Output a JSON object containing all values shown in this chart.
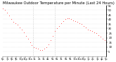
{
  "title": "Milwaukee Outdoor Temperature per Minute (Last 24 Hours)",
  "line_color": "#ff0000",
  "bg_color": "#ffffff",
  "plot_bg_color": "#ffffff",
  "grid_color": "#cccccc",
  "vline_color": "#aaaaaa",
  "ylim": [
    0,
    55
  ],
  "yticks": [
    5,
    10,
    15,
    20,
    25,
    30,
    35,
    40,
    45,
    50,
    55
  ],
  "vlines_x": [
    0.29,
    0.5
  ],
  "x_points": [
    0.0,
    0.02,
    0.04,
    0.06,
    0.08,
    0.1,
    0.12,
    0.14,
    0.16,
    0.18,
    0.2,
    0.22,
    0.24,
    0.26,
    0.28,
    0.3,
    0.32,
    0.34,
    0.36,
    0.38,
    0.4,
    0.42,
    0.44,
    0.46,
    0.48,
    0.5,
    0.52,
    0.54,
    0.56,
    0.58,
    0.6,
    0.62,
    0.64,
    0.66,
    0.68,
    0.7,
    0.72,
    0.74,
    0.76,
    0.78,
    0.8,
    0.82,
    0.84,
    0.86,
    0.88,
    0.9,
    0.92,
    0.94,
    0.96,
    0.98,
    1.0
  ],
  "y_points": [
    52,
    50,
    47,
    44,
    40,
    37,
    36,
    34,
    31,
    29,
    26,
    22,
    19,
    15,
    12,
    10,
    9,
    8,
    7,
    7,
    8,
    10,
    13,
    17,
    22,
    27,
    30,
    33,
    36,
    38,
    40,
    41,
    41,
    40,
    39,
    38,
    37,
    36,
    35,
    33,
    31,
    29,
    28,
    27,
    26,
    25,
    23,
    21,
    19,
    17,
    15
  ],
  "markersize": 1.0,
  "title_fontsize": 3.8,
  "ytick_fontsize": 2.8,
  "xtick_fontsize": 2.5,
  "xtick_labels": [
    "6p",
    "7p",
    "8p",
    "9p",
    "10p",
    "11p",
    "12a",
    "1a",
    "2a",
    "3a",
    "4a",
    "5a",
    "6a",
    "7a",
    "8a",
    "9a",
    "10a",
    "11a",
    "12p",
    "1p",
    "2p",
    "3p",
    "4p",
    "5p"
  ]
}
